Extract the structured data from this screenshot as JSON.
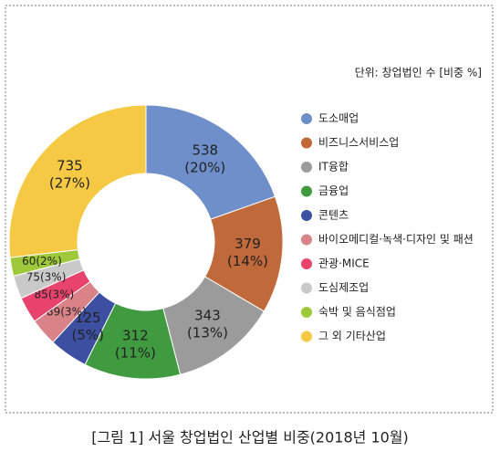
{
  "chart_data": {
    "type": "donut",
    "unit_note": "단위: 창업법인 수 [비중 %]",
    "caption": "[그림 1] 서울 창업법인 산업별 비중(2018년 10월)",
    "categories": [
      "도소매업",
      "비즈니스서비스업",
      "IT융합",
      "금융업",
      "콘텐츠",
      "바이오메디컬·녹색·디자인 및 패션",
      "관광·MICE",
      "도심제조업",
      "숙박 및 음식점업",
      "그 외 기타산업"
    ],
    "values": [
      538,
      379,
      343,
      312,
      125,
      89,
      85,
      75,
      60,
      735
    ],
    "percent_labels": [
      "(20%)",
      "(14%)",
      "(13%)",
      "(11%)",
      "(5%)",
      "(3%)",
      "(3%)",
      "(3%)",
      "(2%)",
      "(27%)"
    ],
    "colors": [
      "#6f8fcb",
      "#c0693a",
      "#9b9b9b",
      "#3f9a40",
      "#3c4fa0",
      "#d98388",
      "#e8436c",
      "#c9c9c9",
      "#9dc93a",
      "#f6c944"
    ]
  }
}
